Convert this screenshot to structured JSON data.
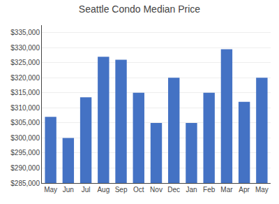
{
  "chart_data": {
    "type": "bar",
    "title": "Seattle Condo Median Price",
    "categories": [
      "May",
      "Jun",
      "Jul",
      "Aug",
      "Sep",
      "Oct",
      "Nov",
      "Dec",
      "Jan",
      "Feb",
      "Mar",
      "Apr",
      "May"
    ],
    "values": [
      307000,
      300000,
      313500,
      327000,
      326000,
      315000,
      305000,
      320000,
      305000,
      315000,
      329500,
      312000,
      320000
    ],
    "color": "#4472C4",
    "ylim": [
      285000,
      337500
    ],
    "yticks": [
      {
        "value": 285000,
        "label": "$285,000"
      },
      {
        "value": 290000,
        "label": "$290,000"
      },
      {
        "value": 295000,
        "label": "$295,000"
      },
      {
        "value": 300000,
        "label": "$300,000"
      },
      {
        "value": 305000,
        "label": "$305,000"
      },
      {
        "value": 310000,
        "label": "$310,000"
      },
      {
        "value": 315000,
        "label": "$315,000"
      },
      {
        "value": 320000,
        "label": "$320,000"
      },
      {
        "value": 325000,
        "label": "$325,000"
      },
      {
        "value": 330000,
        "label": "$330,000"
      },
      {
        "value": 335000,
        "label": "$335,000"
      }
    ],
    "grid": true
  }
}
